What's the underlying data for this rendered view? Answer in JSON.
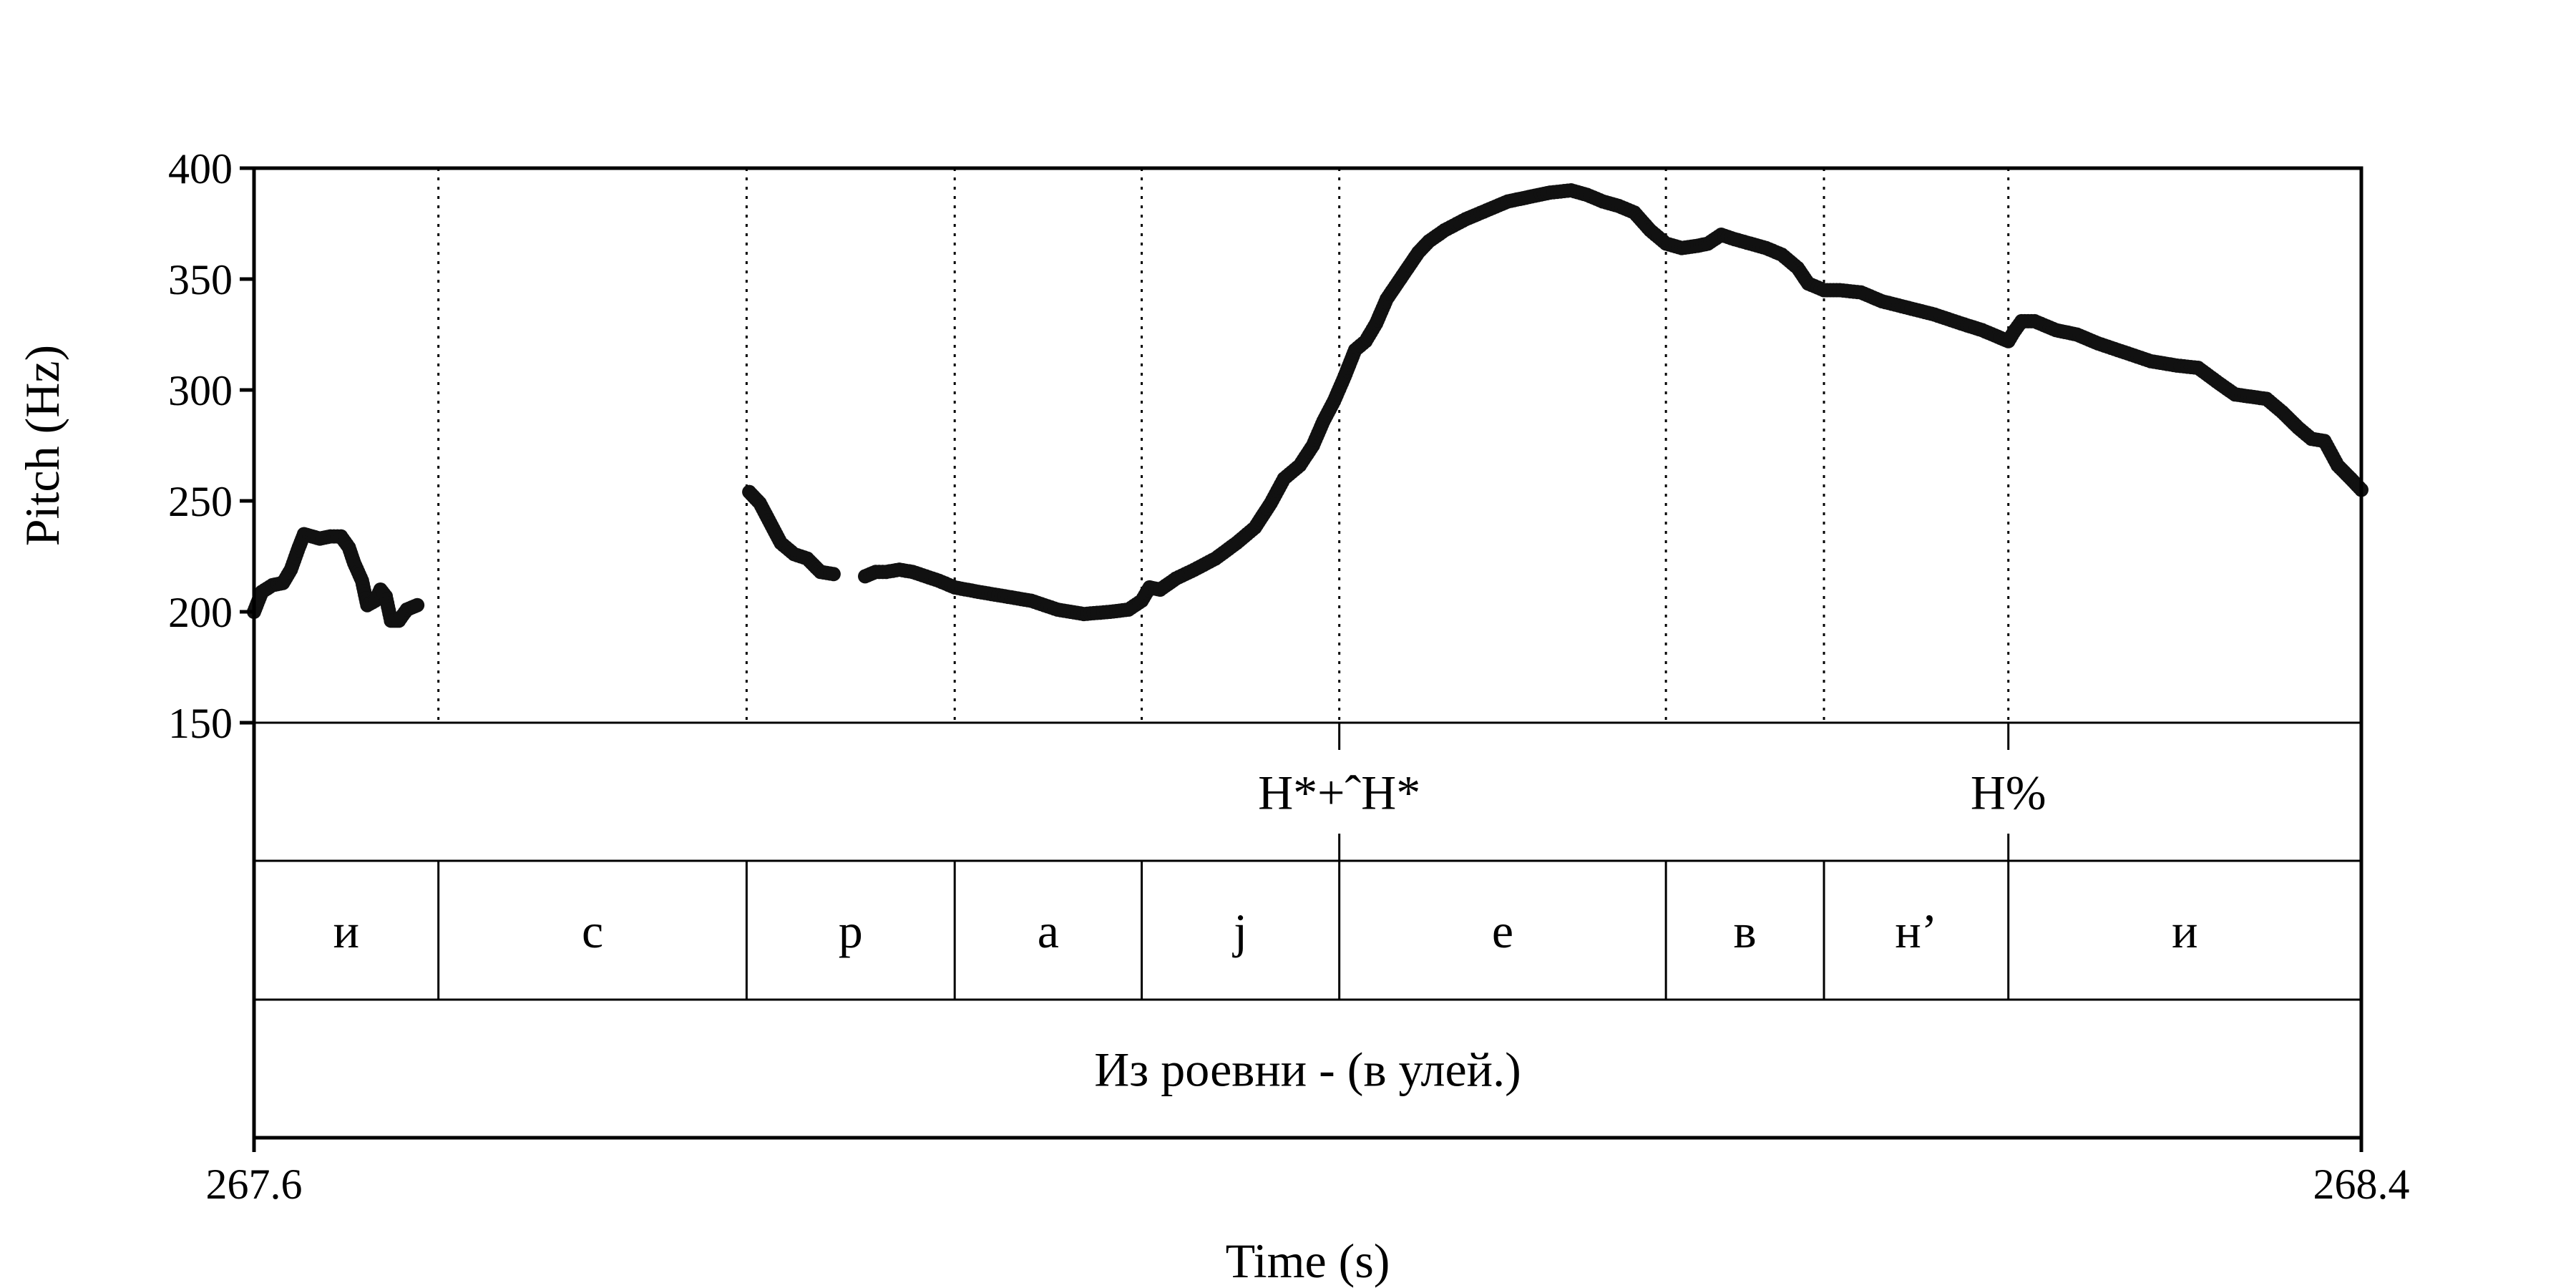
{
  "chart_data": {
    "type": "scatter",
    "xlabel": "Time (s)",
    "ylabel": "Pitch (Hz)",
    "xlim": [
      267.6,
      268.4
    ],
    "ylim": [
      150,
      400
    ],
    "x_tick_labels": [
      "267.6",
      "268.4"
    ],
    "y_ticks": [
      150,
      200,
      250,
      300,
      350,
      400
    ],
    "y_tick_labels": [
      "150",
      "200",
      "250",
      "300",
      "350",
      "400"
    ],
    "grid": false,
    "tone_tier": [
      {
        "label": "H*+ˆH*",
        "time": 268.012
      },
      {
        "label": "H%",
        "time": 268.266
      }
    ],
    "segment_boundaries": [
      267.67,
      267.787,
      267.866,
      267.937,
      268.012,
      268.136,
      268.196,
      268.266
    ],
    "segments": [
      {
        "label": "и",
        "start": 267.6,
        "end": 267.67
      },
      {
        "label": "с",
        "start": 267.67,
        "end": 267.787
      },
      {
        "label": "р",
        "start": 267.787,
        "end": 267.866
      },
      {
        "label": "а",
        "start": 267.866,
        "end": 267.937
      },
      {
        "label": "j",
        "start": 267.937,
        "end": 268.012
      },
      {
        "label": "е",
        "start": 268.012,
        "end": 268.136
      },
      {
        "label": "в",
        "start": 268.136,
        "end": 268.196
      },
      {
        "label": "н’",
        "start": 268.196,
        "end": 268.266
      },
      {
        "label": "и",
        "start": 268.266,
        "end": 268.4
      }
    ],
    "sentence": "Из роевни - (в улей.)",
    "series": [
      {
        "segments": [
          [
            [
              267.6,
              200
            ],
            [
              267.603,
              209
            ],
            [
              267.607,
              212
            ],
            [
              267.611,
              213
            ],
            [
              267.614,
              219
            ],
            [
              267.617,
              229
            ],
            [
              267.619,
              235
            ],
            [
              267.622,
              234
            ],
            [
              267.625,
              233
            ],
            [
              267.629,
              234
            ],
            [
              267.633,
              234
            ],
            [
              267.636,
              229
            ],
            [
              267.638,
              222
            ],
            [
              267.641,
              214
            ],
            [
              267.643,
              203
            ],
            [
              267.646,
              205
            ],
            [
              267.648,
              210
            ],
            [
              267.65,
              207
            ],
            [
              267.652,
              196
            ],
            [
              267.655,
              196
            ],
            [
              267.658,
              201
            ],
            [
              267.662,
              203
            ]
          ],
          [
            [
              267.788,
              254
            ],
            [
              267.792,
              249
            ],
            [
              267.796,
              240
            ],
            [
              267.8,
              231
            ],
            [
              267.805,
              226
            ],
            [
              267.81,
              224
            ],
            [
              267.815,
              218
            ],
            [
              267.82,
              217
            ]
          ],
          [
            [
              267.832,
              216
            ],
            [
              267.836,
              218
            ],
            [
              267.84,
              218
            ],
            [
              267.845,
              219
            ],
            [
              267.85,
              218
            ],
            [
              267.855,
              216
            ],
            [
              267.86,
              214
            ],
            [
              267.866,
              211
            ],
            [
              267.875,
              209
            ],
            [
              267.885,
              207
            ],
            [
              267.895,
              205
            ],
            [
              267.905,
              201
            ],
            [
              267.915,
              199
            ],
            [
              267.925,
              200
            ],
            [
              267.932,
              201
            ],
            [
              267.937,
              205
            ],
            [
              267.94,
              211
            ],
            [
              267.944,
              210
            ],
            [
              267.95,
              215
            ],
            [
              267.957,
              219
            ],
            [
              267.965,
              224
            ],
            [
              267.973,
              231
            ],
            [
              267.98,
              238
            ],
            [
              267.986,
              249
            ],
            [
              267.991,
              260
            ],
            [
              267.997,
              266
            ],
            [
              268.002,
              275
            ],
            [
              268.006,
              286
            ],
            [
              268.01,
              295
            ],
            [
              268.014,
              306
            ],
            [
              268.018,
              318
            ],
            [
              268.022,
              322
            ],
            [
              268.026,
              330
            ],
            [
              268.03,
              341
            ],
            [
              268.034,
              348
            ],
            [
              268.038,
              355
            ],
            [
              268.042,
              362
            ],
            [
              268.046,
              367
            ],
            [
              268.052,
              372
            ],
            [
              268.06,
              377
            ],
            [
              268.068,
              381
            ],
            [
              268.076,
              385
            ],
            [
              268.084,
              387
            ],
            [
              268.092,
              389
            ],
            [
              268.1,
              390
            ],
            [
              268.106,
              388
            ],
            [
              268.112,
              385
            ],
            [
              268.118,
              383
            ],
            [
              268.124,
              380
            ],
            [
              268.13,
              372
            ],
            [
              268.136,
              366
            ],
            [
              268.142,
              364
            ],
            [
              268.148,
              365
            ],
            [
              268.152,
              366
            ],
            [
              268.157,
              370
            ],
            [
              268.162,
              368
            ],
            [
              268.168,
              366
            ],
            [
              268.174,
              364
            ],
            [
              268.18,
              361
            ],
            [
              268.186,
              355
            ],
            [
              268.19,
              348
            ],
            [
              268.196,
              345
            ],
            [
              268.202,
              345
            ],
            [
              268.21,
              344
            ],
            [
              268.218,
              340
            ],
            [
              268.228,
              337
            ],
            [
              268.238,
              334
            ],
            [
              268.248,
              330
            ],
            [
              268.256,
              327
            ],
            [
              268.262,
              324
            ],
            [
              268.266,
              322
            ],
            [
              268.268,
              326
            ],
            [
              268.271,
              331
            ],
            [
              268.276,
              331
            ],
            [
              268.284,
              327
            ],
            [
              268.292,
              325
            ],
            [
              268.3,
              321
            ],
            [
              268.31,
              317
            ],
            [
              268.32,
              313
            ],
            [
              268.33,
              311
            ],
            [
              268.338,
              310
            ],
            [
              268.346,
              303
            ],
            [
              268.352,
              298
            ],
            [
              268.358,
              297
            ],
            [
              268.364,
              296
            ],
            [
              268.37,
              290
            ],
            [
              268.376,
              283
            ],
            [
              268.381,
              278
            ],
            [
              268.386,
              277
            ],
            [
              268.391,
              266
            ],
            [
              268.396,
              260
            ],
            [
              268.4,
              255
            ]
          ]
        ]
      }
    ]
  }
}
